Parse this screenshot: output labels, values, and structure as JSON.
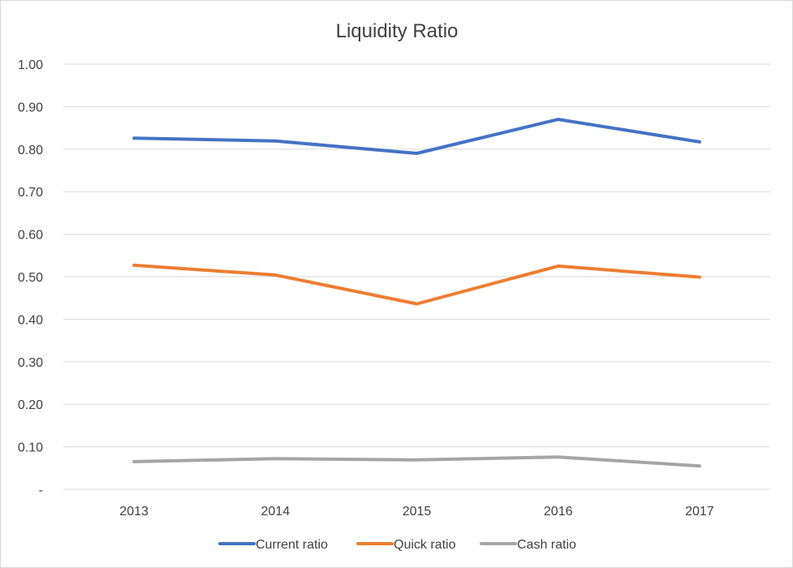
{
  "chart_data": {
    "type": "line",
    "title": "Liquidity Ratio",
    "xlabel": "",
    "ylabel": "",
    "categories": [
      "2013",
      "2014",
      "2015",
      "2016",
      "2017"
    ],
    "ylim": [
      0,
      1.0
    ],
    "yticks": [
      0,
      0.1,
      0.2,
      0.3,
      0.4,
      0.5,
      0.6,
      0.7,
      0.8,
      0.9,
      1.0
    ],
    "ytick_labels": [
      "-",
      "0.10",
      "0.20",
      "0.30",
      "0.40",
      "0.50",
      "0.60",
      "0.70",
      "0.80",
      "0.90",
      "1.00"
    ],
    "grid": true,
    "legend_position": "bottom",
    "series": [
      {
        "name": "Current ratio",
        "color": "#4472C4",
        "values": [
          0.826,
          0.819,
          0.79,
          0.87,
          0.817
        ]
      },
      {
        "name": "Quick ratio",
        "color": "#ED7D31",
        "values": [
          0.527,
          0.504,
          0.436,
          0.525,
          0.499
        ]
      },
      {
        "name": "Cash ratio",
        "color": "#A5A5A5",
        "values": [
          0.065,
          0.072,
          0.069,
          0.076,
          0.055
        ]
      }
    ]
  }
}
